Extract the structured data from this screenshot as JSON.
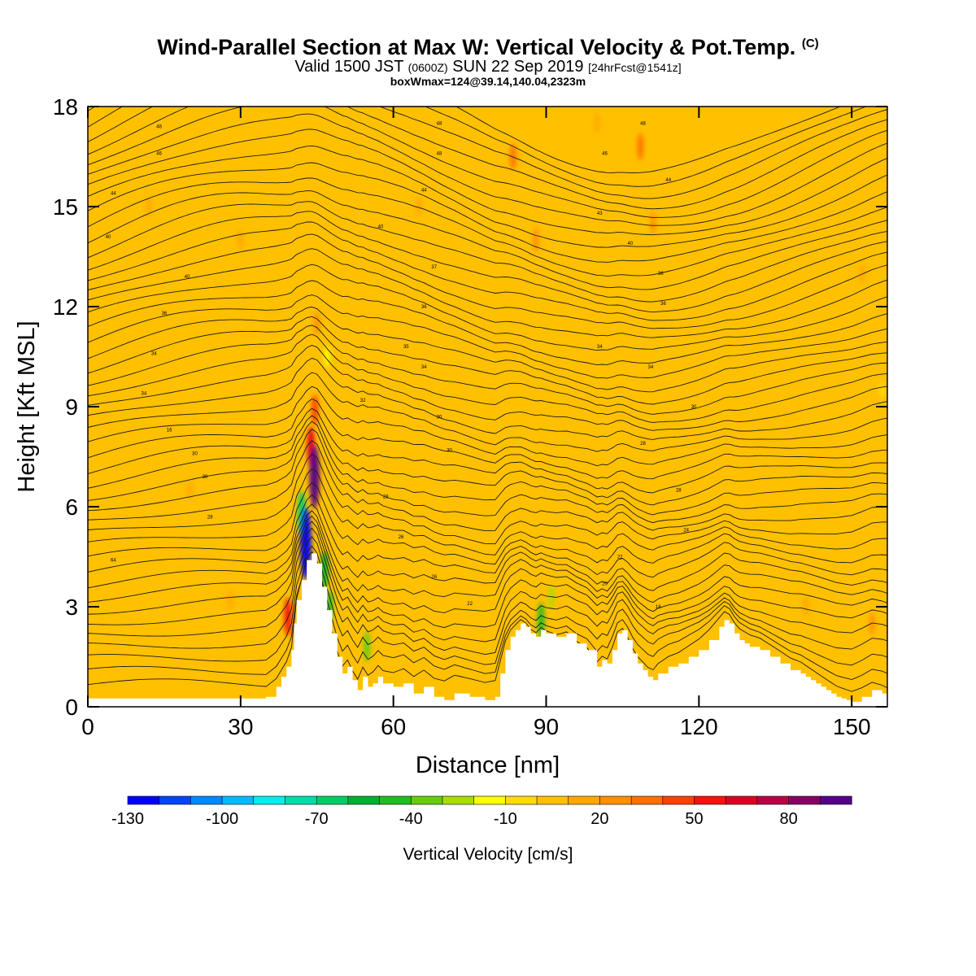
{
  "header": {
    "title_main": "Wind-Parallel Section at Max W: Vertical Velocity & Pot.Temp.",
    "title_copyright": "(C)",
    "valid_prefix": "Valid 1500 JST",
    "valid_utc": "(0600Z)",
    "valid_date": "SUN 22 Sep 2019",
    "forecast": "[24hrFcst@1541z]",
    "box_info": "boxWmax=124@39.14,140.04,2323m"
  },
  "chart_data": {
    "type": "heatmap",
    "xlabel": "Distance [nm]",
    "ylabel": "Height [Kft MSL]",
    "xlim": [
      0,
      157
    ],
    "ylim": [
      0,
      18
    ],
    "xticks": [
      0,
      30,
      60,
      90,
      120,
      150
    ],
    "xtick_labels": [
      "0",
      "30",
      "60",
      "90",
      "120",
      "150"
    ],
    "yticks": [
      0,
      3,
      6,
      9,
      12,
      15,
      18
    ],
    "ytick_labels": [
      "0",
      "3",
      "6",
      "9",
      "12",
      "15",
      "18"
    ],
    "grid": false,
    "colorbar": {
      "label": "Vertical Velocity [cm/s]",
      "tick_values": [
        -130,
        -100,
        -70,
        -40,
        -10,
        20,
        50,
        80
      ],
      "tick_labels": [
        "-130",
        "-100",
        "-70",
        "-40",
        "-10",
        "20",
        "50",
        "80"
      ],
      "bins": [
        -130,
        -120,
        -110,
        -100,
        -90,
        -80,
        -70,
        -60,
        -50,
        -40,
        -30,
        -20,
        -10,
        0,
        10,
        20,
        30,
        40,
        50,
        60,
        70,
        80,
        90,
        100
      ],
      "colors": [
        "#0000ff",
        "#0044ff",
        "#0088ff",
        "#00bbff",
        "#00eeee",
        "#00ddaa",
        "#00cc66",
        "#00b030",
        "#22bb22",
        "#66cc11",
        "#aadd00",
        "#ffff00",
        "#ffdd00",
        "#ffc000",
        "#ffa800",
        "#ff9000",
        "#ff7000",
        "#ff4000",
        "#ff1010",
        "#dd0022",
        "#bb0044",
        "#880066",
        "#550088"
      ]
    },
    "background_w": 5,
    "terrain": {
      "x": [
        0,
        35,
        37,
        38,
        39,
        40,
        40.5,
        41,
        42,
        43,
        44,
        45,
        46,
        47,
        48,
        49,
        50,
        51,
        52,
        53,
        54,
        55,
        56,
        57,
        58,
        60,
        62,
        64,
        66,
        68,
        70,
        72,
        75,
        78,
        80,
        81,
        82,
        83,
        84,
        85,
        86,
        87,
        88,
        89,
        90,
        92,
        94,
        96,
        98,
        100,
        101,
        102,
        103,
        104,
        105,
        106,
        107,
        108,
        109,
        110,
        111,
        112,
        114,
        116,
        118,
        120,
        122,
        124,
        125,
        126,
        127,
        128,
        129,
        130,
        132,
        134,
        136,
        138,
        140,
        141,
        142,
        143,
        144,
        145,
        146,
        147,
        148,
        149,
        150,
        152,
        154,
        156,
        157
      ],
      "kft": [
        0.25,
        0.3,
        0.6,
        0.9,
        1.2,
        1.7,
        2.5,
        3.2,
        3.8,
        4.4,
        4.6,
        4.3,
        3.6,
        2.9,
        2.2,
        1.5,
        1.0,
        1.2,
        0.8,
        0.5,
        0.9,
        0.6,
        0.7,
        0.9,
        0.7,
        0.6,
        0.7,
        0.4,
        0.6,
        0.3,
        0.2,
        0.4,
        0.3,
        0.2,
        0.3,
        1.0,
        1.7,
        2.1,
        2.3,
        2.5,
        2.4,
        2.2,
        2.1,
        2.3,
        2.2,
        2.1,
        2.2,
        1.9,
        1.7,
        1.2,
        1.4,
        1.3,
        1.7,
        2.2,
        2.3,
        2.0,
        1.6,
        1.3,
        1.1,
        0.9,
        0.8,
        1.0,
        1.2,
        1.3,
        1.5,
        1.7,
        2.0,
        2.4,
        2.6,
        2.5,
        2.2,
        2.0,
        1.9,
        1.8,
        1.7,
        1.5,
        1.3,
        1.1,
        1.0,
        0.9,
        0.8,
        0.7,
        0.6,
        0.5,
        0.4,
        0.3,
        0.25,
        0.2,
        0.15,
        0.3,
        0.5,
        0.4,
        0.3
      ]
    },
    "w_features": [
      {
        "x": 44.5,
        "kft": 6.9,
        "w": 110
      },
      {
        "x": 43.8,
        "kft": 7.8,
        "w": 60
      },
      {
        "x": 44.6,
        "kft": 8.9,
        "w": 40
      },
      {
        "x": 42.8,
        "kft": 4.9,
        "w": -130
      },
      {
        "x": 42.0,
        "kft": 5.8,
        "w": -70
      },
      {
        "x": 46.5,
        "kft": 4.1,
        "w": -55
      },
      {
        "x": 47.5,
        "kft": 3.0,
        "w": -45
      },
      {
        "x": 39.3,
        "kft": 2.7,
        "w": 55
      },
      {
        "x": 54.8,
        "kft": 1.8,
        "w": -40
      },
      {
        "x": 89.0,
        "kft": 2.6,
        "w": -50
      },
      {
        "x": 91.0,
        "kft": 3.3,
        "w": -25
      },
      {
        "x": 83.5,
        "kft": 16.5,
        "w": 30
      },
      {
        "x": 88.0,
        "kft": 14.0,
        "w": 25
      },
      {
        "x": 108.5,
        "kft": 16.8,
        "w": 30
      },
      {
        "x": 111.0,
        "kft": 14.5,
        "w": 20
      },
      {
        "x": 45.0,
        "kft": 11.5,
        "w": 25
      },
      {
        "x": 47.0,
        "kft": 10.5,
        "w": -20
      },
      {
        "x": 28.0,
        "kft": 3.2,
        "w": 15
      },
      {
        "x": 154.0,
        "kft": 2.5,
        "w": 20
      },
      {
        "x": 141.0,
        "kft": 3.0,
        "w": 18
      },
      {
        "x": 156.0,
        "kft": 9.5,
        "w": -10
      },
      {
        "x": 12.0,
        "kft": 15.0,
        "w": 15
      },
      {
        "x": 30.0,
        "kft": 14.0,
        "w": 14
      },
      {
        "x": 65.0,
        "kft": 15.0,
        "w": 14
      },
      {
        "x": 152.0,
        "kft": 13.0,
        "w": 12
      },
      {
        "x": 100.0,
        "kft": 17.5,
        "w": 15
      },
      {
        "x": 20.0,
        "kft": 6.5,
        "w": 13
      }
    ],
    "isentrope_count": 46,
    "isentrope_labels": [
      {
        "x": 14,
        "kft": 17.4,
        "text": "46"
      },
      {
        "x": 14,
        "kft": 16.6,
        "text": "46"
      },
      {
        "x": 5,
        "kft": 15.4,
        "text": "44"
      },
      {
        "x": 4,
        "kft": 14.1,
        "text": "40"
      },
      {
        "x": 19.5,
        "kft": 12.9,
        "text": "40"
      },
      {
        "x": 15,
        "kft": 11.8,
        "text": "36"
      },
      {
        "x": 13,
        "kft": 10.6,
        "text": "34"
      },
      {
        "x": 11,
        "kft": 9.4,
        "text": "34"
      },
      {
        "x": 16,
        "kft": 8.3,
        "text": "16"
      },
      {
        "x": 21,
        "kft": 7.6,
        "text": "30"
      },
      {
        "x": 23,
        "kft": 6.9,
        "text": "30"
      },
      {
        "x": 24,
        "kft": 5.7,
        "text": "28"
      },
      {
        "x": 5,
        "kft": 4.4,
        "text": "64"
      },
      {
        "x": 69,
        "kft": 17.5,
        "text": "48"
      },
      {
        "x": 69,
        "kft": 16.6,
        "text": "48"
      },
      {
        "x": 66,
        "kft": 15.5,
        "text": "44"
      },
      {
        "x": 57.5,
        "kft": 14.4,
        "text": "40"
      },
      {
        "x": 68,
        "kft": 13.2,
        "text": "37"
      },
      {
        "x": 66,
        "kft": 12.0,
        "text": "36"
      },
      {
        "x": 62.5,
        "kft": 10.8,
        "text": "35"
      },
      {
        "x": 66,
        "kft": 10.2,
        "text": "34"
      },
      {
        "x": 54,
        "kft": 9.2,
        "text": "32"
      },
      {
        "x": 69,
        "kft": 8.7,
        "text": "30"
      },
      {
        "x": 71,
        "kft": 7.7,
        "text": "30"
      },
      {
        "x": 58.5,
        "kft": 6.3,
        "text": "28"
      },
      {
        "x": 61.5,
        "kft": 5.1,
        "text": "26"
      },
      {
        "x": 68,
        "kft": 3.9,
        "text": "26"
      },
      {
        "x": 75,
        "kft": 3.1,
        "text": "22"
      },
      {
        "x": 109,
        "kft": 17.5,
        "text": "48"
      },
      {
        "x": 101.5,
        "kft": 16.6,
        "text": "46"
      },
      {
        "x": 114,
        "kft": 15.8,
        "text": "44"
      },
      {
        "x": 100.5,
        "kft": 14.8,
        "text": "43"
      },
      {
        "x": 106.5,
        "kft": 13.9,
        "text": "40"
      },
      {
        "x": 112.5,
        "kft": 13.0,
        "text": "38"
      },
      {
        "x": 113,
        "kft": 12.1,
        "text": "36"
      },
      {
        "x": 100.5,
        "kft": 10.8,
        "text": "34"
      },
      {
        "x": 110.5,
        "kft": 10.2,
        "text": "34"
      },
      {
        "x": 119,
        "kft": 9.0,
        "text": "30"
      },
      {
        "x": 109,
        "kft": 7.9,
        "text": "28"
      },
      {
        "x": 116,
        "kft": 6.5,
        "text": "28"
      },
      {
        "x": 117.5,
        "kft": 5.3,
        "text": "24"
      },
      {
        "x": 104.5,
        "kft": 4.5,
        "text": "22"
      },
      {
        "x": 101.5,
        "kft": 3.7,
        "text": "20"
      },
      {
        "x": 112,
        "kft": 3.0,
        "text": "18"
      }
    ]
  }
}
